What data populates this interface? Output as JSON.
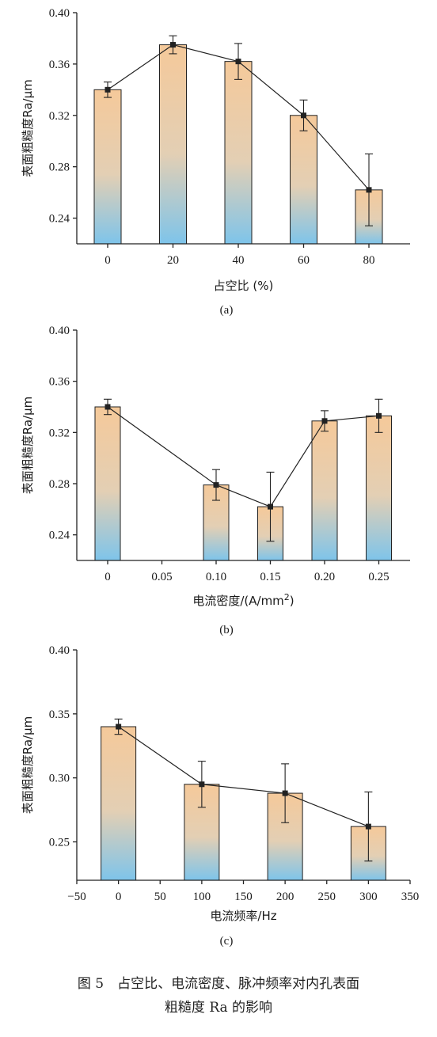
{
  "chart_data": [
    {
      "type": "bar",
      "subplot_label": "(a)",
      "xlabel": "占空比 (%)",
      "ylabel": "表面粗糙度Ra/μm",
      "x_ticks": [
        "0",
        "20",
        "40",
        "60",
        "80"
      ],
      "categories": [
        "0",
        "20",
        "40",
        "60",
        "80"
      ],
      "values": [
        0.34,
        0.375,
        0.362,
        0.32,
        0.262
      ],
      "errors": [
        0.006,
        0.007,
        0.014,
        0.012,
        0.028
      ],
      "ylim": [
        0.22,
        0.4
      ],
      "yticks": [
        "0.24",
        "0.28",
        "0.32",
        "0.36",
        "0.40"
      ],
      "overlay": "line-with-markers",
      "bar_gradient": [
        "#f5c99a",
        "#7ec4ea"
      ]
    },
    {
      "type": "bar",
      "subplot_label": "(b)",
      "xlabel": "电流密度/(A/mm",
      "xlabel_sup": "2",
      "xlabel_end": ")",
      "ylabel": "表面粗糙度Ra/μm",
      "x_ticks": [
        "0",
        "0.05",
        "0.10",
        "0.15",
        "0.20",
        "0.25"
      ],
      "categories": [
        "0",
        "0.10",
        "0.15",
        "0.20",
        "0.25"
      ],
      "values": [
        0.34,
        0.279,
        0.262,
        0.329,
        0.333
      ],
      "errors": [
        0.006,
        0.012,
        0.027,
        0.008,
        0.013
      ],
      "ylim": [
        0.22,
        0.4
      ],
      "yticks": [
        "0.24",
        "0.28",
        "0.32",
        "0.36",
        "0.40"
      ],
      "overlay": "line-with-markers",
      "bar_gradient": [
        "#f5c99a",
        "#7ec4ea"
      ]
    },
    {
      "type": "bar",
      "subplot_label": "(c)",
      "xlabel": "电流频率/Hz",
      "ylabel": "表面粗糙度Ra/μm",
      "x_ticks": [
        "−50",
        "0",
        "50",
        "100",
        "150",
        "200",
        "250",
        "300",
        "350"
      ],
      "x": [
        0,
        100,
        200,
        300
      ],
      "values": [
        0.34,
        0.295,
        0.288,
        0.262
      ],
      "errors": [
        0.006,
        0.018,
        0.023,
        0.027
      ],
      "xlim": [
        -50,
        350
      ],
      "ylim": [
        0.22,
        0.4
      ],
      "yticks": [
        "0.25",
        "0.30",
        "0.35",
        "0.40"
      ],
      "overlay": "line-with-markers",
      "bar_gradient": [
        "#f5c99a",
        "#7ec4ea"
      ]
    }
  ],
  "caption": {
    "line1": "图 5　占空比、电流密度、脉冲频率对内孔表面",
    "line2": "粗糙度 Ra 的影响"
  }
}
